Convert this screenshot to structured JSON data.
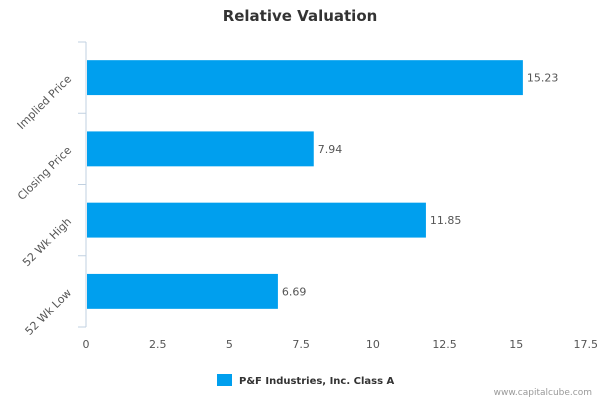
{
  "chart_data": {
    "type": "bar",
    "orientation": "horizontal",
    "title": "Relative Valuation",
    "categories": [
      "Implied Price",
      "Closing Price",
      "52 Wk High",
      "52 Wk Low"
    ],
    "series": [
      {
        "name": "P&F Industries, Inc. Class A",
        "values": [
          15.23,
          7.94,
          11.85,
          6.69
        ]
      }
    ],
    "data_labels": [
      "15.23",
      "7.94",
      "11.85",
      "6.69"
    ],
    "xlim": [
      0,
      17.5
    ],
    "x_ticks": [
      0,
      2.5,
      5,
      7.5,
      10,
      12.5,
      15,
      17.5
    ],
    "x_tick_labels": [
      "0",
      "2.5",
      "5",
      "7.5",
      "10",
      "12.5",
      "15",
      "17.5"
    ],
    "grid": false,
    "legend_position": "bottom-center",
    "bar_color": "#009fee"
  },
  "credit": "www.capitalcube.com"
}
